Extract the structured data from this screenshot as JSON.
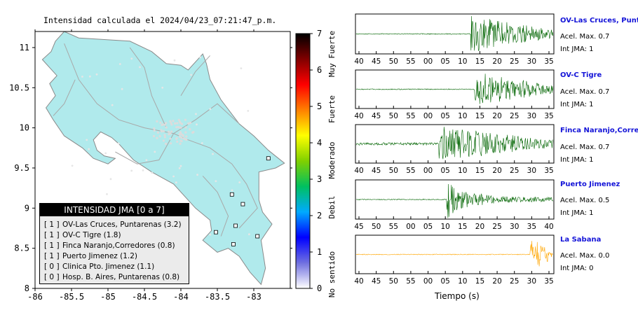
{
  "title": "Intensidad calculada el 2024/04/23_07:21:47_p.m.",
  "chart_data": [
    {
      "type": "map",
      "xlim": [
        -86,
        -82.5
      ],
      "ylim": [
        8,
        11.2
      ],
      "x_ticks": [
        "-86",
        "-85.5",
        "-85",
        "-84.5",
        "-84",
        "-83.5",
        "-83"
      ],
      "y_ticks": [
        "8",
        "8.5",
        "9",
        "9.5",
        "10",
        "10.5",
        "11"
      ],
      "legend_title": "INTENSIDAD JMA [0 a 7]",
      "legend_entries": [
        {
          "level": "[ 1 ]",
          "name": "OV-Las Cruces, Puntarenas (3.2)"
        },
        {
          "level": "[ 1 ]",
          "name": "OV-C Tigre (1.8)"
        },
        {
          "level": "[ 1 ]",
          "name": "Finca Naranjo,Corredores (0.8)"
        },
        {
          "level": "[ 1 ]",
          "name": "Puerto Jimenez (1.2)"
        },
        {
          "level": "[ 0 ]",
          "name": "Clinica Pto. Jimenez (1.1)"
        },
        {
          "level": "[ 0 ]",
          "name": "Hosp. B. Aires, Puntarenas (0.8)"
        }
      ],
      "stations": [
        {
          "lon": -83.15,
          "lat": 9.05
        },
        {
          "lon": -83.25,
          "lat": 8.78
        },
        {
          "lon": -83.52,
          "lat": 8.7
        },
        {
          "lon": -83.28,
          "lat": 8.55
        },
        {
          "lon": -82.95,
          "lat": 8.65
        },
        {
          "lon": -83.3,
          "lat": 9.17
        },
        {
          "lon": -82.8,
          "lat": 9.62
        }
      ]
    },
    {
      "type": "colorbar",
      "ticks": [
        "0",
        "1",
        "2",
        "3",
        "4",
        "5",
        "6",
        "7"
      ],
      "range": [
        0,
        7
      ],
      "labels": [
        "No sentido",
        "Debil",
        "Moderado",
        "Fuerte",
        "Muy Fuerte"
      ],
      "colors": [
        "#ffffff",
        "#7070e0",
        "#0000ff",
        "#00aaff",
        "#00c060",
        "#80d000",
        "#ffff00",
        "#ff8000",
        "#ff0000",
        "#800000",
        "#000000"
      ]
    },
    {
      "type": "line",
      "xlabel": "Tiempo (s)",
      "traces": [
        {
          "name": "OV-Las Cruces, Puntar",
          "acel": "Acel. Max. 0.7",
          "int": "Int JMA: 1",
          "color": "#006400",
          "x_ticks": [
            "40",
            "45",
            "50",
            "55",
            "00",
            "05",
            "10",
            "15",
            "20",
            "25",
            "30",
            "35"
          ],
          "onset": 0.58
        },
        {
          "name": "OV-C Tigre",
          "acel": "Acel. Max. 0.7",
          "int": "Int JMA: 1",
          "color": "#006400",
          "x_ticks": [
            "40",
            "45",
            "50",
            "55",
            "00",
            "05",
            "10",
            "15",
            "20",
            "25",
            "30",
            "35"
          ],
          "onset": 0.6
        },
        {
          "name": "Finca Naranjo,Corredor",
          "acel": "Acel. Max. 0.7",
          "int": "Int JMA: 1",
          "color": "#006400",
          "x_ticks": [
            "40",
            "45",
            "50",
            "55",
            "00",
            "05",
            "10",
            "15",
            "20",
            "25",
            "30",
            "35"
          ],
          "onset": 0.42
        },
        {
          "name": "Puerto Jimenez",
          "acel": "Acel. Max. 0.5",
          "int": "Int JMA: 1",
          "color": "#006400",
          "x_ticks": [
            "45",
            "50",
            "55",
            "00",
            "05",
            "10",
            "15",
            "20",
            "25",
            "30",
            "35",
            "40"
          ],
          "onset": 0.46
        },
        {
          "name": "La Sabana",
          "acel": "Acel. Max. 0.0",
          "int": "Int JMA: 0",
          "color": "#ffa500",
          "x_ticks": [
            "40",
            "45",
            "50",
            "55",
            "00",
            "05",
            "10",
            "15",
            "20",
            "25",
            "30",
            "35"
          ],
          "onset": 0.88
        }
      ]
    }
  ]
}
